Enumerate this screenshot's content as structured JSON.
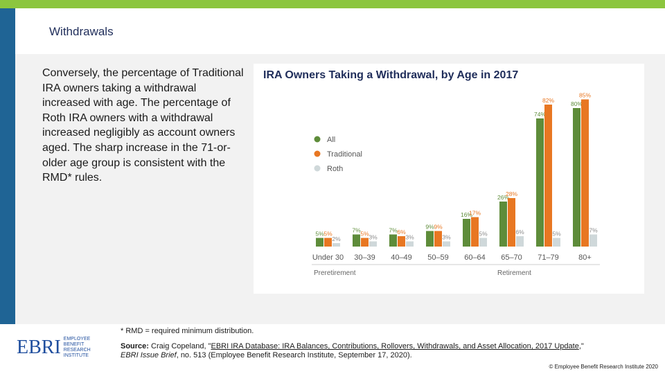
{
  "slide": {
    "title": "Withdrawals",
    "body": "Conversely, the percentage of Traditional IRA owners taking a withdrawal increased with age. The percentage of Roth IRA owners with a withdrawal increased negligibly as account owners aged. The sharp increase in the 71-or-older age group is consistent with the RMD* rules."
  },
  "chart_data": {
    "type": "bar",
    "title": "IRA Owners Taking a Withdrawal, by Age in 2017",
    "categories": [
      "Under 30",
      "30–39",
      "40–49",
      "50–59",
      "60–64",
      "65–70",
      "71–79",
      "80+"
    ],
    "series": [
      {
        "name": "All",
        "values": [
          5,
          7,
          7,
          9,
          16,
          26,
          74,
          80
        ],
        "color": "#5e8c3a"
      },
      {
        "name": "Traditional",
        "values": [
          5,
          5,
          6,
          9,
          17,
          28,
          82,
          85
        ],
        "color": "#e87722"
      },
      {
        "name": "Roth",
        "values": [
          2,
          3,
          3,
          3,
          5,
          6,
          5,
          7
        ],
        "color": "#cfd8da"
      }
    ],
    "groups": [
      {
        "label": "Preretirement",
        "categories": [
          "Under 30",
          "30–39",
          "40–49",
          "50–59",
          "60–64"
        ]
      },
      {
        "label": "Retirement",
        "categories": [
          "65–70",
          "71–79",
          "80+"
        ]
      }
    ],
    "value_suffix": "%",
    "ylim": [
      0,
      90
    ],
    "legend_position": "left",
    "grid": false
  },
  "footnote": "* RMD = required minimum distribution.",
  "source": {
    "label": "Source:",
    "prefix": " Craig Copeland, \"",
    "link_text": "EBRI IRA Database: IRA Balances, Contributions, Rollovers, Withdrawals, and Asset Allocation, 2017 Update",
    "suffix": ",\"",
    "publication": "EBRI Issue Brief",
    "details": ", no. 513 (Employee Benefit Research Institute, September 17, 2020)."
  },
  "logo": {
    "mark": "EBRI",
    "line1": "EMPLOYEE BENEFIT",
    "line2": "RESEARCH INSTITUTE"
  },
  "copyright": "© Employee Benefit Research Institute 2020"
}
